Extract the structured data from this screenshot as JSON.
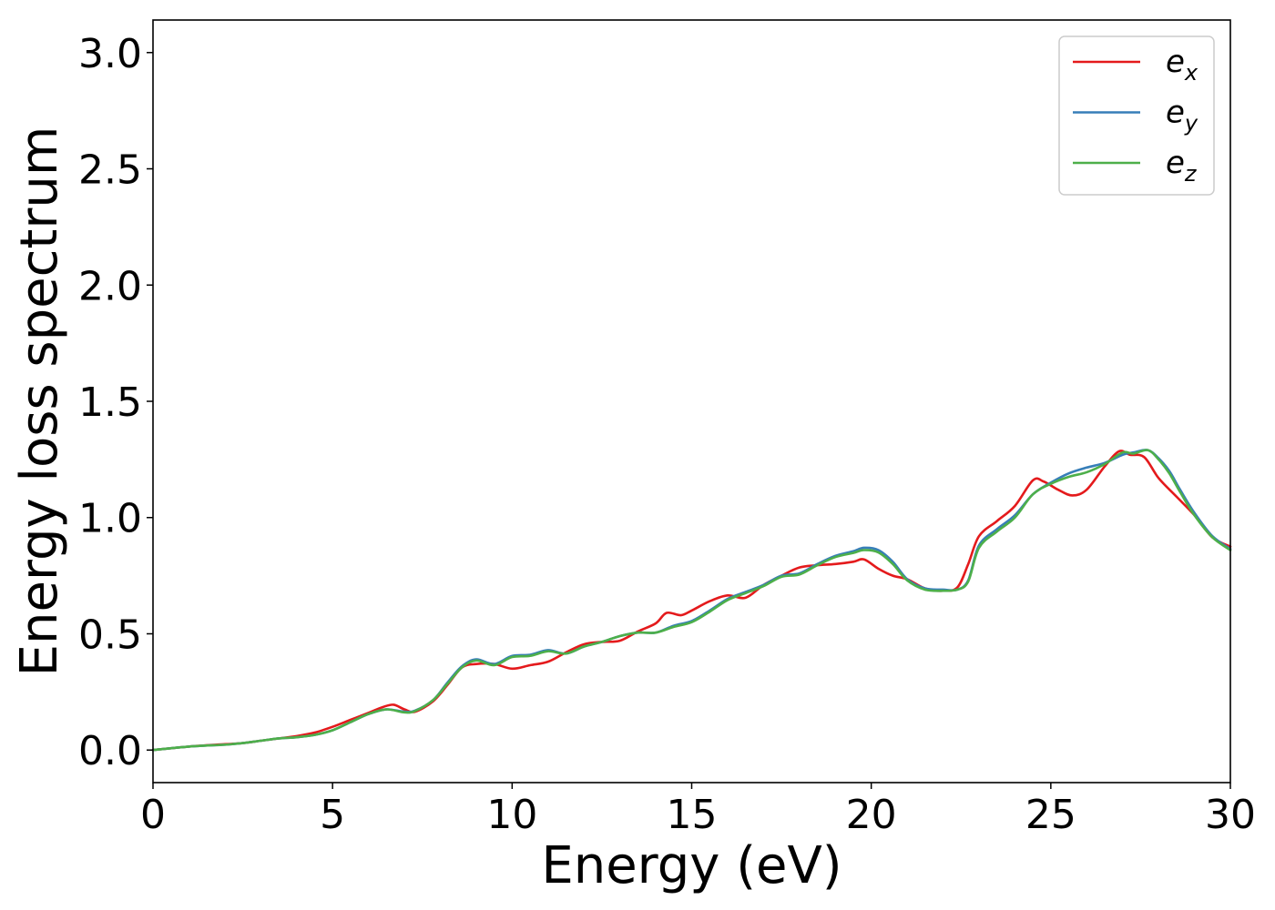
{
  "chart_data": {
    "type": "line",
    "xlabel": "Energy (eV)",
    "ylabel": "Energy loss spectrum",
    "xlim": [
      0,
      30
    ],
    "ylim": [
      -0.14,
      3.14
    ],
    "xticks": [
      0,
      5,
      10,
      15,
      20,
      25,
      30
    ],
    "xtick_labels": [
      "0",
      "5",
      "10",
      "15",
      "20",
      "25",
      "30"
    ],
    "yticks": [
      0.0,
      0.5,
      1.0,
      1.5,
      2.0,
      2.5,
      3.0
    ],
    "ytick_labels": [
      "0.0",
      "0.5",
      "1.0",
      "1.5",
      "2.0",
      "2.5",
      "3.0"
    ],
    "grid": false,
    "legend_position": "top-right",
    "series": [
      {
        "name": "e",
        "subscript": "x",
        "color": "#e41a1c",
        "x": [
          0,
          1,
          2,
          2.5,
          3,
          3.5,
          4,
          4.5,
          5,
          5.5,
          6,
          6.4,
          6.7,
          7,
          7.3,
          7.8,
          8.2,
          8.6,
          9,
          9.5,
          10,
          10.5,
          11,
          11.5,
          12,
          12.5,
          13,
          13.5,
          14,
          14.3,
          14.7,
          15,
          15.5,
          16,
          16.5,
          17,
          17.5,
          18,
          18.5,
          19,
          19.5,
          19.8,
          20.2,
          20.6,
          21,
          21.5,
          22,
          22.4,
          22.7,
          23,
          23.5,
          24,
          24.5,
          24.8,
          25.2,
          25.6,
          26,
          26.5,
          26.9,
          27.2,
          27.6,
          28,
          28.5,
          29,
          29.5,
          30
        ],
        "y": [
          0.0,
          0.015,
          0.025,
          0.03,
          0.04,
          0.05,
          0.06,
          0.075,
          0.1,
          0.13,
          0.16,
          0.185,
          0.195,
          0.175,
          0.165,
          0.21,
          0.28,
          0.355,
          0.37,
          0.37,
          0.35,
          0.365,
          0.38,
          0.42,
          0.455,
          0.465,
          0.47,
          0.51,
          0.545,
          0.59,
          0.58,
          0.6,
          0.64,
          0.665,
          0.655,
          0.71,
          0.75,
          0.785,
          0.795,
          0.8,
          0.81,
          0.82,
          0.78,
          0.75,
          0.735,
          0.695,
          0.685,
          0.7,
          0.8,
          0.92,
          0.985,
          1.05,
          1.16,
          1.155,
          1.12,
          1.095,
          1.12,
          1.22,
          1.285,
          1.27,
          1.26,
          1.17,
          1.09,
          1.01,
          0.915,
          0.875
        ]
      },
      {
        "name": "e",
        "subscript": "y",
        "color": "#377eb8",
        "x": [
          0,
          1,
          2,
          2.5,
          3,
          3.5,
          4,
          4.5,
          5,
          5.5,
          6,
          6.5,
          7,
          7.3,
          7.8,
          8.2,
          8.6,
          9,
          9.5,
          10,
          10.5,
          11,
          11.5,
          12,
          12.5,
          13,
          13.5,
          14,
          14.5,
          15,
          15.5,
          16,
          16.5,
          17,
          17.5,
          18,
          18.5,
          19,
          19.5,
          19.8,
          20.2,
          20.6,
          21,
          21.5,
          22,
          22.4,
          22.7,
          23,
          23.5,
          24,
          24.5,
          25,
          25.5,
          26,
          26.5,
          27,
          27.3,
          27.7,
          28,
          28.3,
          28.6,
          29,
          29.5,
          30
        ],
        "y": [
          0.0,
          0.015,
          0.023,
          0.03,
          0.04,
          0.05,
          0.055,
          0.065,
          0.085,
          0.12,
          0.155,
          0.175,
          0.165,
          0.17,
          0.215,
          0.29,
          0.36,
          0.39,
          0.37,
          0.405,
          0.41,
          0.43,
          0.415,
          0.445,
          0.465,
          0.49,
          0.505,
          0.505,
          0.535,
          0.555,
          0.6,
          0.65,
          0.68,
          0.71,
          0.75,
          0.76,
          0.8,
          0.835,
          0.855,
          0.87,
          0.86,
          0.81,
          0.735,
          0.695,
          0.69,
          0.69,
          0.73,
          0.88,
          0.95,
          1.01,
          1.1,
          1.15,
          1.19,
          1.215,
          1.235,
          1.27,
          1.28,
          1.29,
          1.255,
          1.2,
          1.12,
          1.02,
          0.92,
          0.865
        ]
      },
      {
        "name": "e",
        "subscript": "z",
        "color": "#4daf4a",
        "x": [
          0,
          1,
          2,
          2.5,
          3,
          3.5,
          4,
          4.5,
          5,
          5.5,
          6,
          6.5,
          7,
          7.3,
          7.8,
          8.2,
          8.6,
          9,
          9.5,
          10,
          10.5,
          11,
          11.5,
          12,
          12.5,
          13,
          13.5,
          14,
          14.5,
          15,
          15.5,
          16,
          16.5,
          17,
          17.5,
          18,
          18.5,
          19,
          19.5,
          19.8,
          20.2,
          20.6,
          21,
          21.5,
          22,
          22.4,
          22.7,
          23,
          23.5,
          24,
          24.5,
          25,
          25.5,
          26,
          26.5,
          27,
          27.3,
          27.7,
          28,
          28.3,
          28.6,
          29,
          29.5,
          30
        ],
        "y": [
          0.0,
          0.015,
          0.023,
          0.03,
          0.04,
          0.05,
          0.055,
          0.065,
          0.085,
          0.12,
          0.155,
          0.175,
          0.162,
          0.168,
          0.215,
          0.285,
          0.355,
          0.385,
          0.365,
          0.4,
          0.405,
          0.425,
          0.415,
          0.445,
          0.465,
          0.49,
          0.505,
          0.505,
          0.53,
          0.55,
          0.595,
          0.645,
          0.675,
          0.705,
          0.745,
          0.755,
          0.795,
          0.83,
          0.848,
          0.86,
          0.85,
          0.8,
          0.73,
          0.69,
          0.685,
          0.69,
          0.725,
          0.87,
          0.94,
          1.0,
          1.1,
          1.145,
          1.175,
          1.195,
          1.23,
          1.28,
          1.275,
          1.29,
          1.25,
          1.19,
          1.11,
          1.01,
          0.915,
          0.86
        ]
      }
    ]
  }
}
